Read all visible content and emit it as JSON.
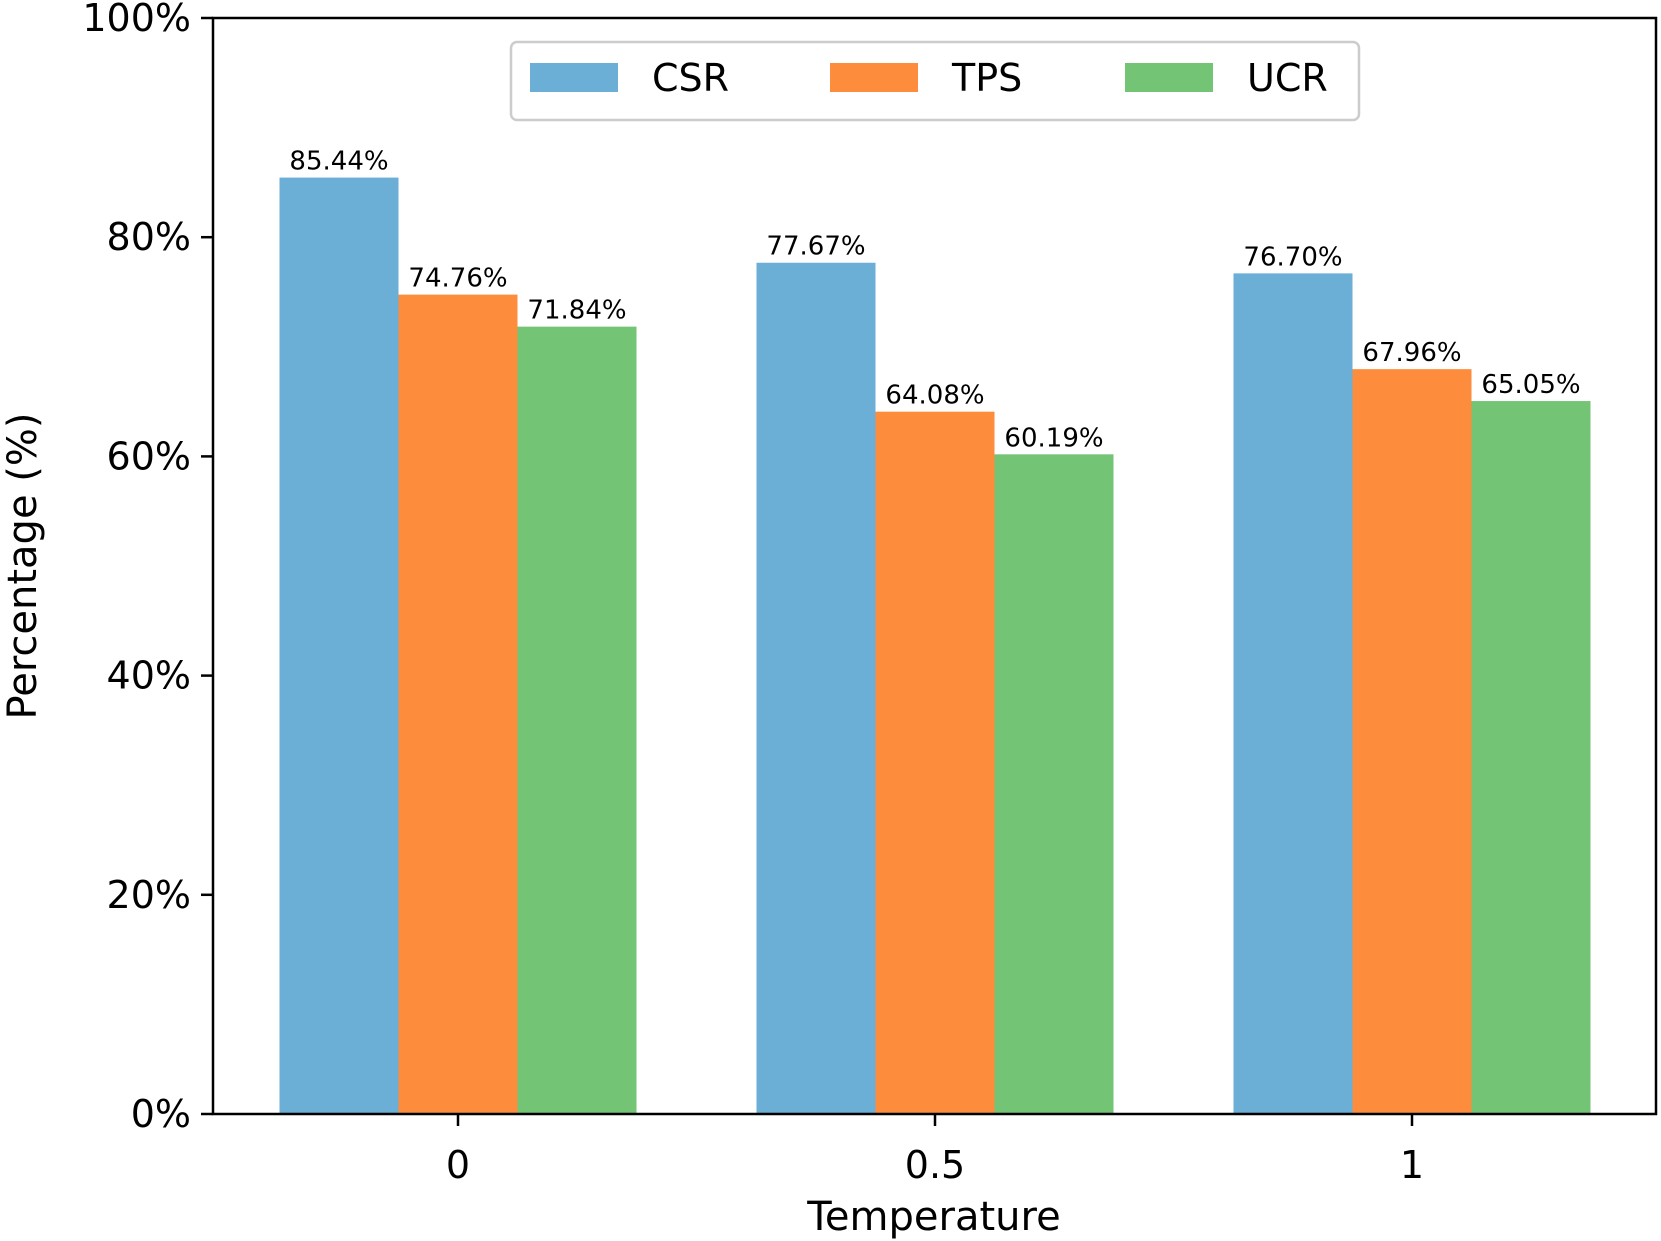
{
  "chart_data": {
    "type": "bar",
    "title": "",
    "xlabel": "Temperature",
    "ylabel": "Percentage (%)",
    "categories": [
      "0",
      "0.5",
      "1"
    ],
    "ylim": [
      0,
      100
    ],
    "yticks": [
      0,
      20,
      40,
      60,
      80,
      100
    ],
    "ytick_labels": [
      "0%",
      "20%",
      "40%",
      "60%",
      "80%",
      "100%"
    ],
    "legend_position": "top-center",
    "grid": false,
    "series": [
      {
        "name": "CSR",
        "color": "#6baed6",
        "values": [
          85.44,
          77.67,
          76.7
        ],
        "labels": [
          "85.44%",
          "77.67%",
          "76.70%"
        ]
      },
      {
        "name": "TPS",
        "color": "#fd8d3c",
        "values": [
          74.76,
          64.08,
          67.96
        ],
        "labels": [
          "74.76%",
          "64.08%",
          "67.96%"
        ]
      },
      {
        "name": "UCR",
        "color": "#74c476",
        "values": [
          71.84,
          60.19,
          65.05
        ],
        "labels": [
          "71.84%",
          "60.19%",
          "65.05%"
        ]
      }
    ]
  }
}
